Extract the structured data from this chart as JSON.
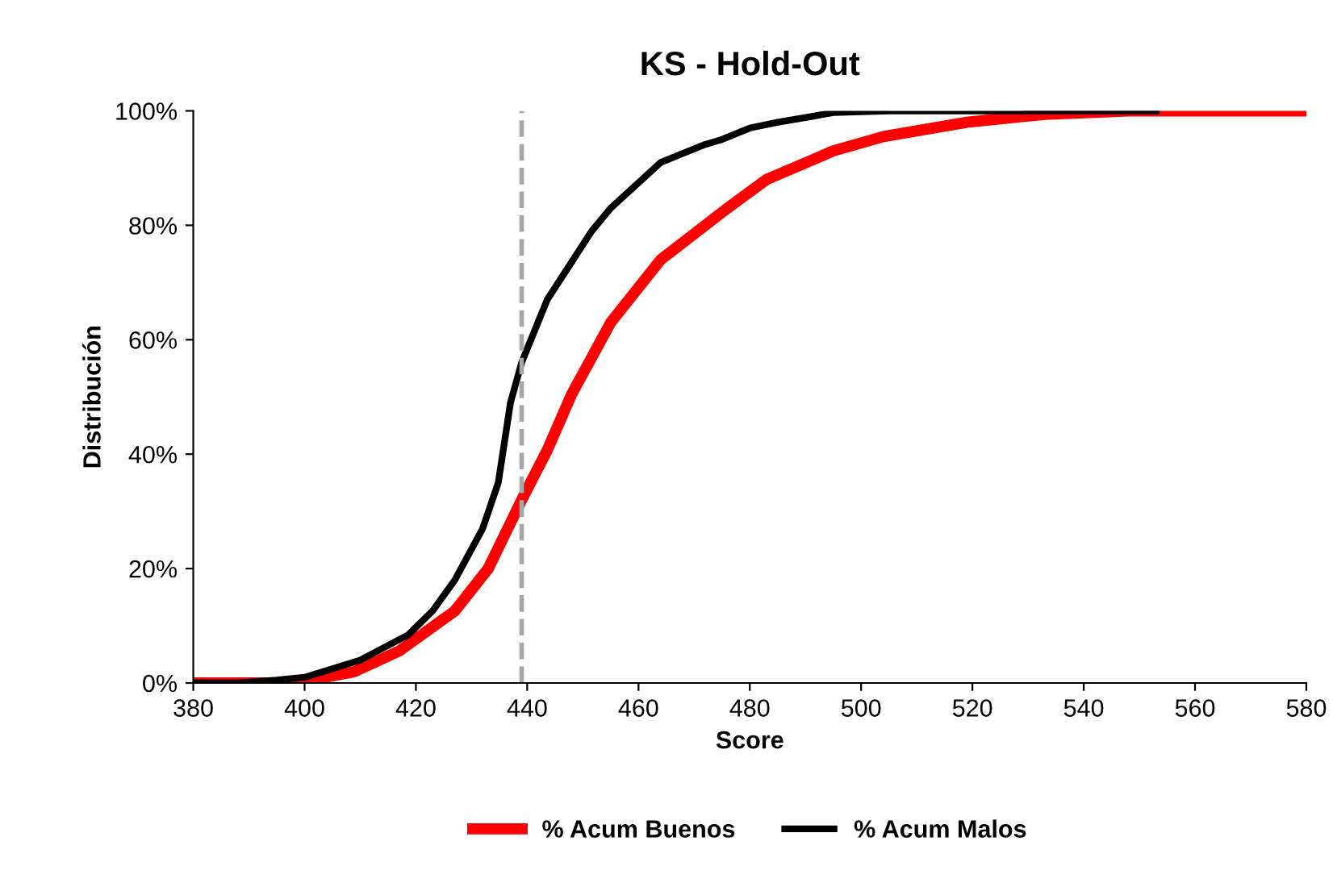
{
  "chart_data": {
    "type": "line",
    "title": "KS - Hold-Out",
    "xlabel": "Score",
    "ylabel": "Distribución",
    "xlim": [
      380,
      580
    ],
    "xticks": [
      380,
      400,
      420,
      440,
      460,
      480,
      500,
      520,
      540,
      560,
      580
    ],
    "ylim": [
      0,
      100
    ],
    "yticks": [
      {
        "value": 0,
        "label": "0%"
      },
      {
        "value": 20,
        "label": "20%"
      },
      {
        "value": 40,
        "label": "40%"
      },
      {
        "value": 60,
        "label": "60%"
      },
      {
        "value": 80,
        "label": "80%"
      },
      {
        "value": 100,
        "label": "100%"
      }
    ],
    "grid": false,
    "legend": "bottom",
    "marker": "none",
    "line_style": "solid",
    "ref_lines": [
      {
        "axis": "x",
        "value": 439,
        "color": "#a6a6a6",
        "line_style": "dashed"
      }
    ],
    "series": [
      {
        "name": "% Acum Buenos",
        "color": "#ff0000",
        "x": [
          380,
          395,
          401,
          409,
          417,
          427,
          433,
          439,
          443.6,
          448,
          455,
          464,
          476,
          483,
          495,
          504,
          519,
          533,
          548,
          580
        ],
        "values": [
          0,
          0,
          0.5,
          2,
          5.6,
          12.6,
          20,
          32,
          40.7,
          50.5,
          63,
          74,
          83,
          88,
          93,
          95.5,
          98,
          99.4,
          100,
          100
        ]
      },
      {
        "name": "% Acum Malos",
        "color": "#000000",
        "x": [
          380,
          388,
          395,
          400,
          410,
          418.6,
          423,
          427,
          432,
          434.8,
          437,
          439,
          443.6,
          451.6,
          455,
          464,
          471.6,
          475,
          480,
          485,
          491,
          495,
          505,
          553
        ],
        "values": [
          0,
          0,
          0.5,
          1,
          4,
          8.4,
          12.6,
          18,
          27,
          35,
          49,
          56,
          67,
          79,
          83,
          91,
          94,
          95,
          97,
          98,
          99,
          99.7,
          100,
          100
        ]
      }
    ]
  }
}
